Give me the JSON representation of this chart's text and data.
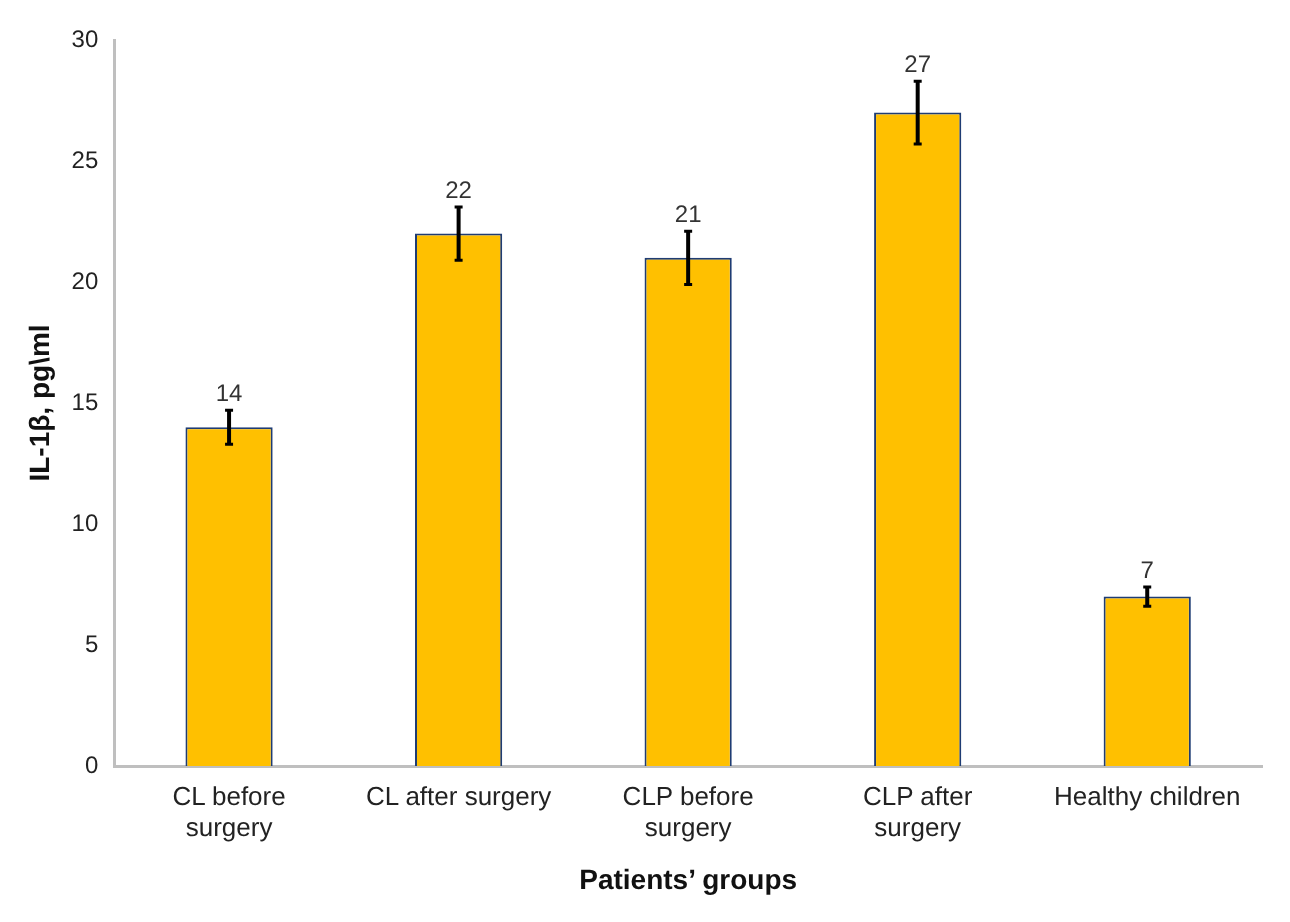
{
  "chart_data": {
    "type": "bar",
    "xlabel": "Patients’ groups",
    "ylabel": "IL-1β, pg\\ml",
    "categories": [
      "CL before surgery",
      "CL after surgery",
      "CLP before surgery",
      "CLP after surgery",
      "Healthy children"
    ],
    "values": [
      14,
      22,
      21,
      27,
      7
    ],
    "errors": [
      0.7,
      1.1,
      1.1,
      1.3,
      0.4
    ],
    "color": "#ffc000",
    "ylim": [
      0,
      30
    ],
    "yticks": [
      0,
      5,
      10,
      15,
      20,
      25,
      30
    ],
    "grid": false,
    "legend": false,
    "data_labels": true
  }
}
